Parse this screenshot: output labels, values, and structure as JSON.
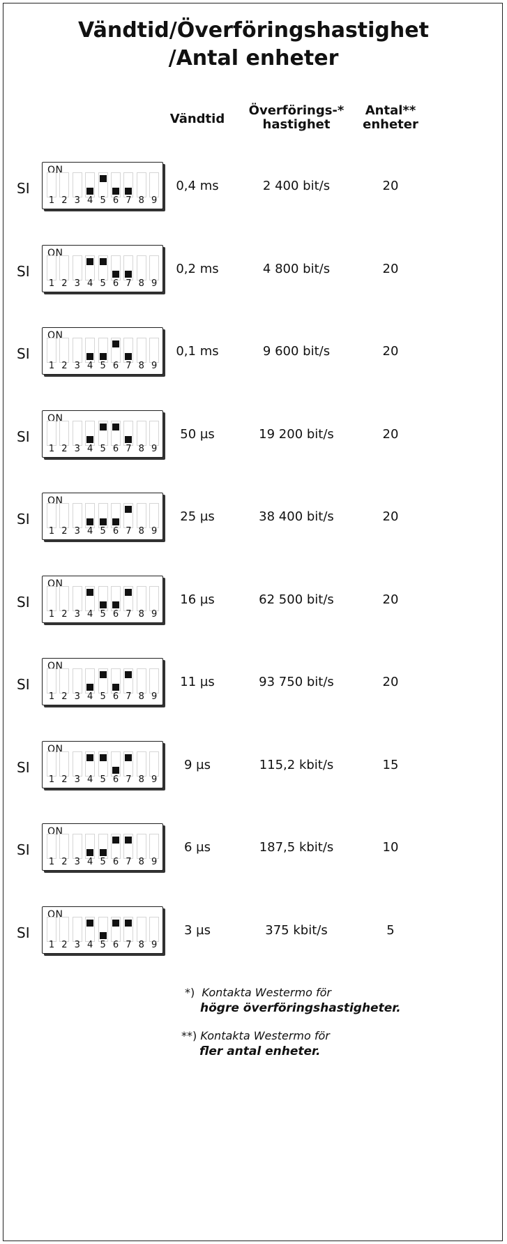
{
  "title_line1": "Vändtid/Överföringshastighet",
  "title_line2": "/Antal enheter",
  "headers": {
    "col1": "Vändtid",
    "col2_line1": "Överförings-*",
    "col2_line2": "hastighet",
    "col3_line1": "Antal**",
    "col3_line2": "enheter"
  },
  "switch_label": "SI",
  "dip_on_label": "ON",
  "dip_numbers": [
    "1",
    "2",
    "3",
    "4",
    "5",
    "6",
    "7",
    "8",
    "9"
  ],
  "rows": [
    {
      "label": "SI",
      "time": "0,4 ms",
      "speed": "2 400 bit/s",
      "units": "20",
      "switches": {
        "4": "down",
        "5": "up",
        "6": "down",
        "7": "down"
      }
    },
    {
      "label": "SI",
      "time": "0,2 ms",
      "speed": "4 800 bit/s",
      "units": "20",
      "switches": {
        "4": "up",
        "5": "up",
        "6": "down",
        "7": "down"
      }
    },
    {
      "label": "SI",
      "time": "0,1 ms",
      "speed": "9 600 bit/s",
      "units": "20",
      "switches": {
        "4": "down",
        "5": "down",
        "6": "up",
        "7": "down"
      }
    },
    {
      "label": "SI",
      "time": "50 µs",
      "speed": "19 200 bit/s",
      "units": "20",
      "switches": {
        "4": "down",
        "5": "up",
        "6": "up",
        "7": "down"
      }
    },
    {
      "label": "SI",
      "time": "25 µs",
      "speed": "38 400 bit/s",
      "units": "20",
      "switches": {
        "4": "down",
        "5": "down",
        "6": "down",
        "7": "up"
      }
    },
    {
      "label": "SI",
      "time": "16 µs",
      "speed": "62 500 bit/s",
      "units": "20",
      "switches": {
        "4": "up",
        "5": "down",
        "6": "down",
        "7": "up"
      }
    },
    {
      "label": "SI",
      "time": "11 µs",
      "speed": "93 750 bit/s",
      "units": "20",
      "switches": {
        "4": "down",
        "5": "up",
        "6": "down",
        "7": "up"
      }
    },
    {
      "label": "SI",
      "time": "9 µs",
      "speed": "115,2 kbit/s",
      "units": "15",
      "switches": {
        "4": "up",
        "5": "up",
        "6": "down",
        "7": "up"
      }
    },
    {
      "label": "SI",
      "time": "6 µs",
      "speed": "187,5 kbit/s",
      "units": "10",
      "switches": {
        "4": "down",
        "5": "down",
        "6": "up",
        "7": "up"
      }
    },
    {
      "label": "SI",
      "time": "3 µs",
      "speed": "375 kbit/s",
      "units": "5",
      "switches": {
        "4": "up",
        "5": "down",
        "6": "up",
        "7": "up"
      }
    }
  ],
  "notes": [
    {
      "marker": "*)",
      "line1": "Kontakta Westermo för",
      "line2": "högre överföringshastigheter."
    },
    {
      "marker": "**)",
      "line1": "Kontakta Westermo för",
      "line2": "fler antal enheter."
    }
  ]
}
